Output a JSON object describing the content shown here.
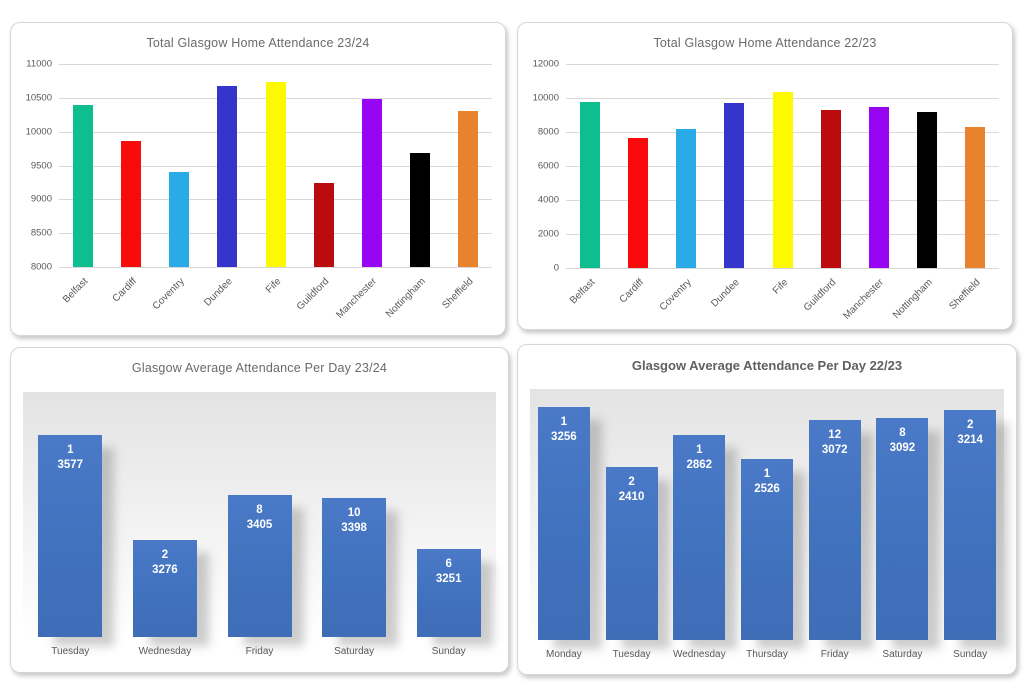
{
  "page": {
    "background": "#FFFFFF",
    "grid_layout": "2x2 chart cards"
  },
  "chart_data": [
    {
      "type": "bar",
      "title": "Total Glasgow Home Attendance 23/24",
      "categories": [
        "Belfast",
        "Cardiff",
        "Coventry",
        "Dundee",
        "Fife",
        "Guildford",
        "Manchester",
        "Nottingham",
        "Sheffield"
      ],
      "values": [
        10400,
        9860,
        9400,
        10670,
        10740,
        9240,
        10490,
        9680,
        10310
      ],
      "bar_colors": [
        "#0EBE8E",
        "#FA0B0B",
        "#2BAAE8",
        "#3535CB",
        "#FDF900",
        "#BB0B0E",
        "#9705F2",
        "#000000",
        "#E8822D"
      ],
      "xlabel": "",
      "ylabel": "",
      "ylim": [
        8000,
        11000
      ],
      "ytick_step": 500,
      "yticks": [
        8000,
        8500,
        9000,
        9500,
        10000,
        10500,
        11000
      ],
      "grid": true,
      "legend": "none",
      "x_label_rotation_deg": -45
    },
    {
      "type": "bar",
      "title": "Total Glasgow Home Attendance 22/23",
      "categories": [
        "Belfast",
        "Cardiff",
        "Coventry",
        "Dundee",
        "Fife",
        "Guildford",
        "Manchester",
        "Nottingham",
        "Sheffield"
      ],
      "values": [
        9750,
        7650,
        8150,
        9700,
        10370,
        9300,
        9500,
        9180,
        8300
      ],
      "bar_colors": [
        "#0EBE8E",
        "#FA0B0B",
        "#2BAAE8",
        "#3535CB",
        "#FDF900",
        "#BB0B0E",
        "#9705F2",
        "#000000",
        "#E8822D"
      ],
      "xlabel": "",
      "ylabel": "",
      "ylim": [
        0,
        12000
      ],
      "ytick_step": 2000,
      "yticks": [
        0,
        2000,
        4000,
        6000,
        8000,
        10000,
        12000
      ],
      "grid": true,
      "legend": "none",
      "x_label_rotation_deg": -45
    },
    {
      "type": "bar",
      "title": "Glasgow Average Attendance Per Day 23/24",
      "categories": [
        "Tuesday",
        "Wednesday",
        "Friday",
        "Saturday",
        "Sunday"
      ],
      "series": [
        {
          "name": "games_label",
          "values": [
            1,
            2,
            8,
            10,
            6
          ]
        },
        {
          "name": "average_attendance",
          "values": [
            3577,
            3276,
            3405,
            3398,
            3251
          ]
        }
      ],
      "bar_color": "#4173BE",
      "data_label_color": "#FFFFFF",
      "xlabel": "",
      "ylabel": "",
      "ylim": [
        3000,
        3700
      ],
      "grid": false,
      "legend": "none",
      "plot_background": "gray-to-white gradient with bar drop shadows"
    },
    {
      "type": "bar",
      "title": "Glasgow Average Attendance Per Day 22/23",
      "categories": [
        "Monday",
        "Tuesday",
        "Wednesday",
        "Thursday",
        "Friday",
        "Saturday",
        "Sunday"
      ],
      "series": [
        {
          "name": "games_label",
          "values": [
            1,
            2,
            1,
            1,
            12,
            8,
            2
          ]
        },
        {
          "name": "average_attendance",
          "values": [
            3256,
            2410,
            2862,
            2526,
            3072,
            3092,
            3214
          ]
        }
      ],
      "bar_color": "#4173BE",
      "data_label_color": "#FFFFFF",
      "xlabel": "",
      "ylabel": "",
      "ylim": [
        0,
        3500
      ],
      "grid": false,
      "legend": "none",
      "plot_background": "gray-to-white gradient with bar drop shadows"
    }
  ],
  "colors": {
    "card_border": "#D6D6D6",
    "gridline": "#D9D9D9",
    "axis_text": "#595959",
    "title_text": "#6A6A6A"
  }
}
